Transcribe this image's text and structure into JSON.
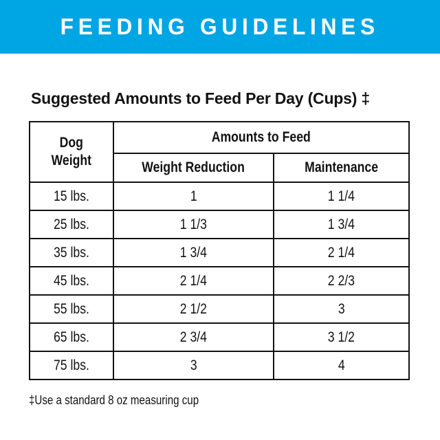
{
  "banner": {
    "title": "FEEDING GUIDELINES",
    "bg_color": "#00A5E3",
    "text_color": "#FFFFFF"
  },
  "section": {
    "title": "Suggested Amounts to Feed Per Day (Cups) ‡"
  },
  "table": {
    "headers": {
      "dog_weight": "Dog\nWeight",
      "amounts_to_feed": "Amounts to Feed",
      "weight_reduction": "Weight Reduction",
      "maintenance": "Maintenance"
    },
    "rows": [
      {
        "weight": "15 lbs.",
        "weight_reduction": "1",
        "maintenance": "1 1/4"
      },
      {
        "weight": "25 lbs.",
        "weight_reduction": "1 1/3",
        "maintenance": "1 3/4"
      },
      {
        "weight": "35 lbs.",
        "weight_reduction": "1 3/4",
        "maintenance": "2 1/4"
      },
      {
        "weight": "45 lbs.",
        "weight_reduction": "2 1/4",
        "maintenance": "2 2/3"
      },
      {
        "weight": "55 lbs.",
        "weight_reduction": "2 1/2",
        "maintenance": "3"
      },
      {
        "weight": "65 lbs.",
        "weight_reduction": "2 3/4",
        "maintenance": "3 1/2"
      },
      {
        "weight": "75 lbs.",
        "weight_reduction": "3",
        "maintenance": "4"
      }
    ]
  },
  "footnote": "‡Use a standard 8 oz measuring cup"
}
